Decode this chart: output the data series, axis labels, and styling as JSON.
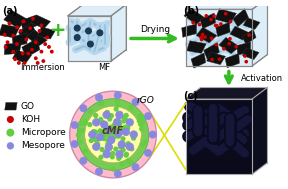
{
  "fig_width": 2.88,
  "fig_height": 1.89,
  "dpi": 100,
  "bg_color": "#ffffff",
  "panel_a_label": "(a)",
  "panel_b_label": "(b)",
  "panel_c_label": "(c)",
  "immersion_label": "Immersion",
  "mf_label": "MF",
  "drying_label": "Drying",
  "activation_label": "Activation",
  "rgo_label": "rGO",
  "cmf_label": "cMF",
  "legend_go": "GO",
  "legend_koh": "KOH",
  "legend_micropore": "Micropore",
  "legend_mesopore": "Mesopore",
  "go_color": "#111111",
  "koh_color": "#cc0000",
  "micropore_color": "#66cc44",
  "mesopore_color": "#8888dd",
  "rgo_ring_color": "#ffbbcc",
  "cmf_fill_color": "#ffffaa",
  "mf_foam_color": "#b8d8ee",
  "mf_foam_dark": "#7aabcc",
  "box_edge_color": "#888888",
  "box_fill_color": "#e8f4f8",
  "arrow_color": "#33bb22",
  "yellow_line_color": "#dddd00",
  "carbon_bg": "#0a0a1a",
  "carbon_strand": "#111133"
}
